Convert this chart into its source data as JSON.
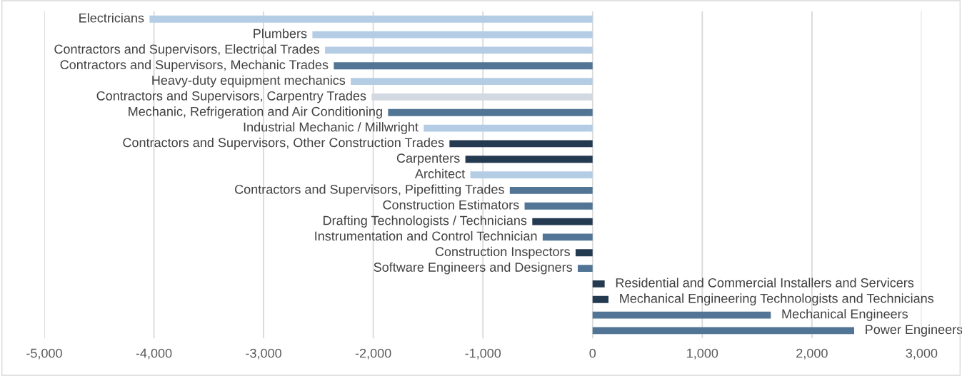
{
  "chart_data": {
    "type": "bar",
    "orientation": "horizontal",
    "categories": [
      "Electricians",
      "Plumbers",
      "Contractors and Supervisors, Electrical Trades",
      "Contractors and Supervisors, Mechanic Trades",
      "Heavy-duty equipment mechanics",
      "Contractors and Supervisors, Carpentry Trades",
      "Mechanic, Refrigeration and Air Conditioning",
      "Industrial Mechanic / Millwright",
      "Contractors and Supervisors, Other Construction Trades",
      "Carpenters",
      "Architect",
      "Contractors and Supervisors, Pipefitting Trades",
      "Construction Estimators",
      "Drafting Technologists / Technicians",
      "Instrumentation and Control Technician",
      "Construction Inspectors",
      "Software Engineers and Designers",
      "Residential and Commercial Installers and Servicers",
      "Mechanical Engineering Technologists and Technicians",
      "Mechanical Engineers",
      "Power Engineers"
    ],
    "values": [
      -4040,
      -2555,
      -2440,
      -2360,
      -2205,
      -2015,
      -1865,
      -1540,
      -1305,
      -1160,
      -1115,
      -755,
      -620,
      -550,
      -455,
      -155,
      -135,
      110,
      145,
      1625,
      2385
    ],
    "colors": [
      "#b4cde4",
      "#b4cde4",
      "#b4cde4",
      "#527595",
      "#b4cde4",
      "#d3d9e1",
      "#527595",
      "#b4cde4",
      "#243a51",
      "#243a51",
      "#b4cde4",
      "#527595",
      "#527595",
      "#243a51",
      "#527595",
      "#243a51",
      "#527595",
      "#243a51",
      "#243a51",
      "#527595",
      "#527595"
    ],
    "xlim": [
      -5000,
      3000
    ],
    "xticks": [
      {
        "value": -5000,
        "label": "-5,000"
      },
      {
        "value": -4000,
        "label": "-4,000"
      },
      {
        "value": -3000,
        "label": "-3,000"
      },
      {
        "value": -2000,
        "label": "-2,000"
      },
      {
        "value": -1000,
        "label": "-1,000"
      },
      0,
      {
        "value": 1000,
        "label": "1,000"
      },
      {
        "value": 2000,
        "label": "2,000"
      },
      {
        "value": 3000,
        "label": "3,000"
      }
    ],
    "grid": "x"
  }
}
